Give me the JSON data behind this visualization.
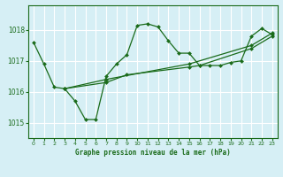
{
  "title": "Graphe pression niveau de la mer (hPa)",
  "bg_color": "#d6eff5",
  "grid_color": "#ffffff",
  "line_color": "#1a6b1a",
  "marker_color": "#1a6b1a",
  "xlim": [
    -0.5,
    23.5
  ],
  "ylim": [
    1014.5,
    1018.8
  ],
  "yticks": [
    1015,
    1016,
    1017,
    1018
  ],
  "xticks": [
    0,
    1,
    2,
    3,
    4,
    5,
    6,
    7,
    8,
    9,
    10,
    11,
    12,
    13,
    14,
    15,
    16,
    17,
    18,
    19,
    20,
    21,
    22,
    23
  ],
  "main_series": [
    1017.6,
    1016.9,
    1016.15,
    1016.1,
    1015.7,
    1015.1,
    1015.1,
    1016.5,
    1016.9,
    1017.2,
    1018.15,
    1018.2,
    1018.1,
    1017.65,
    1017.25,
    1017.25,
    1016.85,
    1016.85,
    1016.85,
    1016.95,
    1017.0,
    1017.8,
    1018.05,
    1017.85
  ],
  "trend1_x": [
    3,
    7,
    15,
    21,
    23
  ],
  "trend1_y": [
    1016.1,
    1016.4,
    1016.9,
    1017.5,
    1017.9
  ],
  "trend2_x": [
    3,
    7,
    9,
    15,
    16,
    21,
    23
  ],
  "trend2_y": [
    1016.1,
    1016.3,
    1016.55,
    1016.8,
    1016.85,
    1017.4,
    1017.8
  ]
}
